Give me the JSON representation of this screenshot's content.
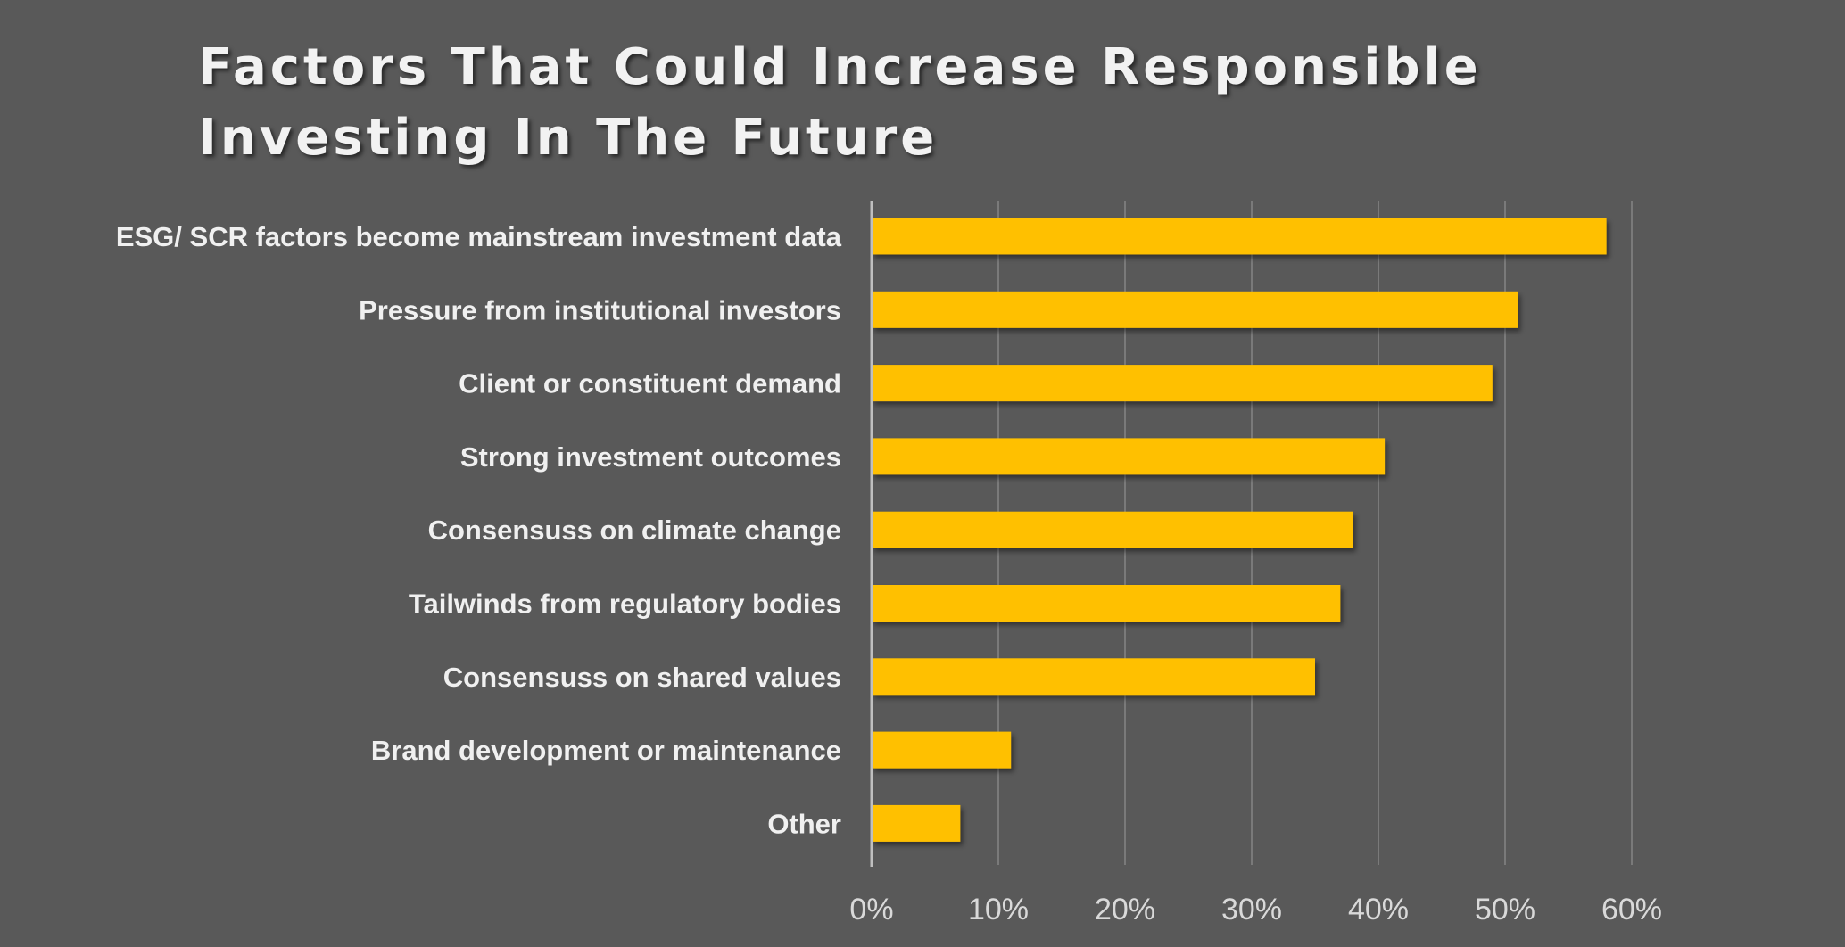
{
  "chart_data": {
    "type": "bar",
    "orientation": "horizontal",
    "title": "Factors That Could Increase Responsible Investing In The Future",
    "categories": [
      "ESG/ SCR factors become mainstream investment data",
      "Pressure from institutional investors",
      "Client or constituent demand",
      "Strong investment outcomes",
      "Consensuss on climate change",
      "Tailwinds from regulatory bodies",
      "Consensuss on shared values",
      "Brand development or maintenance",
      "Other"
    ],
    "values": [
      58,
      51,
      49,
      40.5,
      38,
      37,
      35,
      11,
      7
    ],
    "xlim": [
      0,
      60
    ],
    "x_ticks": [
      "0%",
      "10%",
      "20%",
      "30%",
      "40%",
      "50%",
      "60%"
    ],
    "grid": true,
    "legend": "none"
  },
  "colors": {
    "background": "#595959",
    "bar": "#FFC000",
    "text": "#F0F0F0",
    "gridline": "#7A7A7A"
  }
}
